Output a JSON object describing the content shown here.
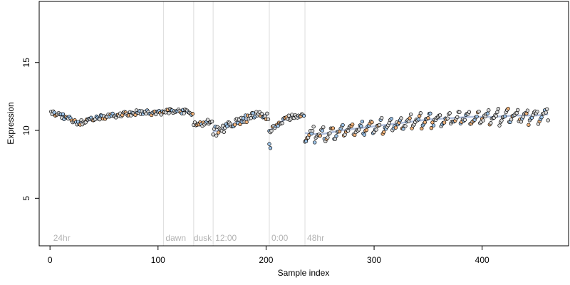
{
  "chart_data": {
    "type": "scatter",
    "xlabel": "Sample index",
    "ylabel": "Expression",
    "xlim": [
      -10,
      480
    ],
    "ylim": [
      1.5,
      19.5
    ],
    "x_ticks": [
      0,
      100,
      200,
      300,
      400
    ],
    "y_ticks": [
      5,
      10,
      15
    ],
    "grid": false,
    "legend": "none",
    "phase_boundaries": [
      105,
      133,
      151,
      203,
      236
    ],
    "phase_labels": [
      {
        "x": 3,
        "text": "24hr"
      },
      {
        "x": 107,
        "text": "dawn"
      },
      {
        "x": 133,
        "text": "dusk"
      },
      {
        "x": 153,
        "text": "12:00"
      },
      {
        "x": 205,
        "text": "0:00"
      },
      {
        "x": 238,
        "text": "48hr"
      }
    ],
    "colors": {
      "point_fill_blue": "#9fc5ea",
      "point_fill_orange": "#f0b27a",
      "point_fill_grey": "#d9d9d9",
      "point_stroke": "#000000",
      "trend_line": "#9db0d6",
      "phase_line": "#dcdcdc"
    },
    "segments": [
      {
        "x": [
          1,
          8,
          15,
          20,
          25,
          30,
          40,
          50,
          60,
          70,
          80,
          90,
          100,
          104
        ],
        "y": [
          11.3,
          11.2,
          10.9,
          10.8,
          10.6,
          10.6,
          10.8,
          11.0,
          11.1,
          11.2,
          11.3,
          11.3,
          11.3,
          11.3
        ]
      },
      {
        "x": [
          105,
          110,
          115,
          120,
          125,
          130,
          132
        ],
        "y": [
          11.35,
          11.4,
          11.45,
          11.45,
          11.4,
          11.3,
          11.2
        ]
      },
      {
        "x": [
          133,
          137,
          141,
          145,
          150
        ],
        "y": [
          10.5,
          10.45,
          10.5,
          10.6,
          10.7
        ]
      },
      {
        "x": [
          151,
          160,
          170,
          180,
          190,
          195,
          200,
          202
        ],
        "y": [
          9.9,
          10.1,
          10.5,
          10.8,
          11.0,
          11.1,
          11.15,
          11.15
        ]
      },
      {
        "x": [
          203,
          210,
          215,
          220,
          225,
          230,
          235
        ],
        "y": [
          10.0,
          10.3,
          10.7,
          10.9,
          11.0,
          11.1,
          11.2
        ]
      },
      {
        "x": [
          236,
          250,
          270,
          290,
          310,
          330,
          350,
          370,
          390,
          410,
          430,
          450,
          461
        ],
        "y": [
          9.8,
          9.7,
          10.0,
          10.2,
          10.4,
          10.6,
          10.8,
          10.9,
          11.0,
          11.0,
          11.1,
          11.1,
          11.2
        ]
      }
    ],
    "drops": [
      {
        "x": 203,
        "y": 9.0
      },
      {
        "x": 204,
        "y": 8.7
      },
      {
        "x": 237,
        "y": 9.2
      }
    ]
  }
}
